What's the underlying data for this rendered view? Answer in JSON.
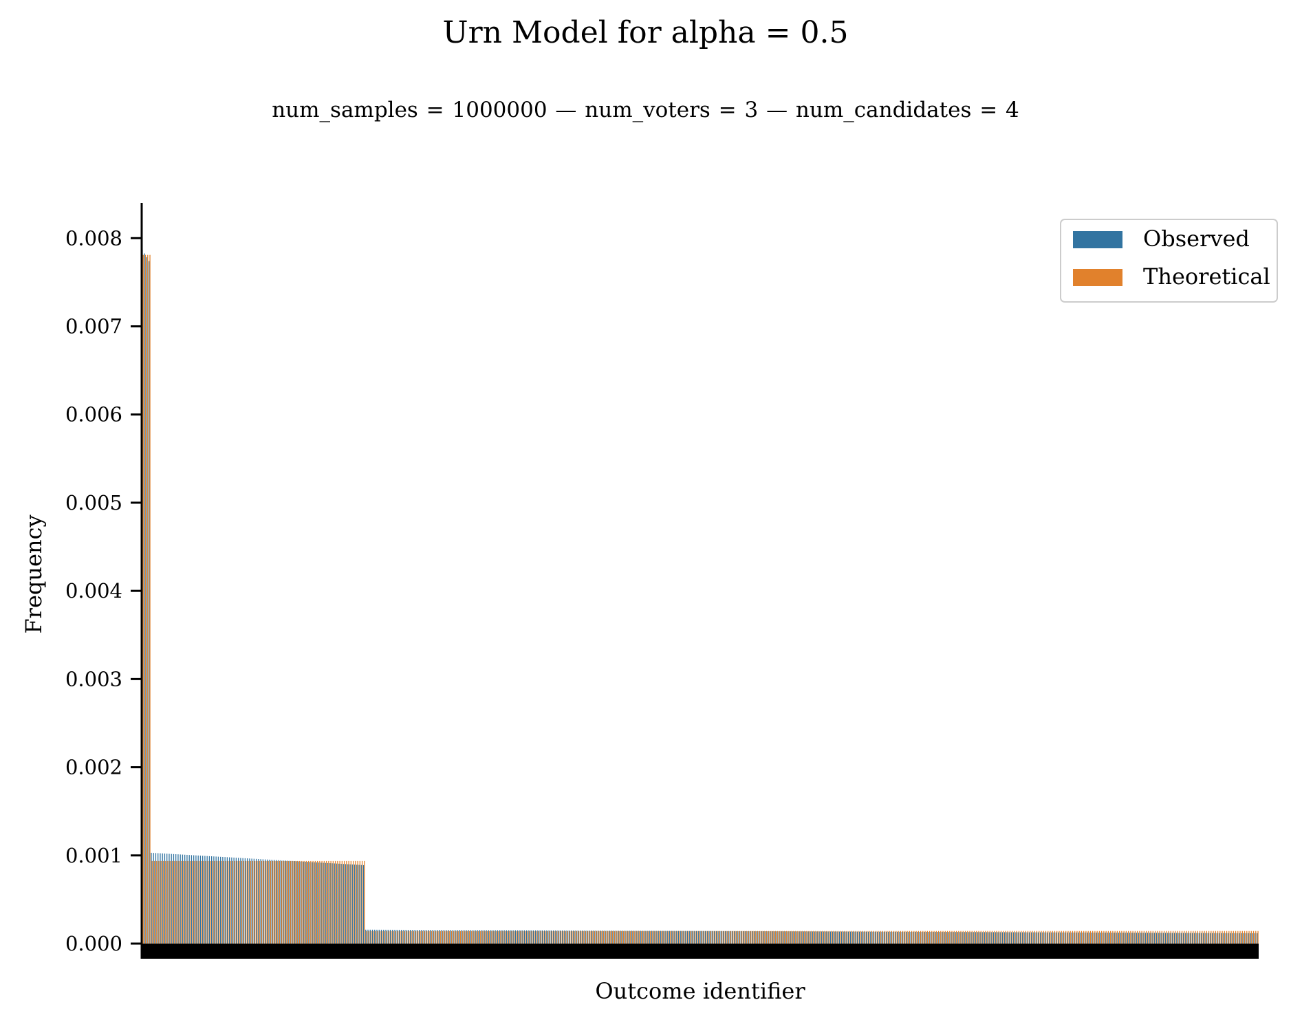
{
  "chart_data": {
    "type": "bar",
    "title": "Urn Model for alpha = 0.5",
    "subtitle": "num_samples = 1000000  —  num_voters = 3  —  num_candidates = 4",
    "xlabel": "Outcome identifier",
    "ylabel": "Frequency",
    "ylim": [
      0,
      0.0084
    ],
    "yticks": [
      "0.000",
      "0.001",
      "0.002",
      "0.003",
      "0.004",
      "0.005",
      "0.006",
      "0.007",
      "0.008"
    ],
    "grid": false,
    "legend_position": "top-right",
    "num_outcomes": 500,
    "x_tick_labels_hidden": true,
    "series": [
      {
        "name": "Observed",
        "color": "#3274a1",
        "segments": [
          {
            "count": 4,
            "start": 0.00787,
            "end": 0.00774
          },
          {
            "count": 96,
            "start": 0.00103,
            "end": 0.00089
          },
          {
            "count": 400,
            "start": 0.000158,
            "end": 0.000118
          }
        ]
      },
      {
        "name": "Theoretical",
        "color": "#e1812c",
        "segments": [
          {
            "count": 4,
            "start": 0.00781,
            "end": 0.00781
          },
          {
            "count": 96,
            "start": 0.000937,
            "end": 0.000937
          },
          {
            "count": 400,
            "start": 0.000143,
            "end": 0.000143
          }
        ]
      }
    ]
  }
}
